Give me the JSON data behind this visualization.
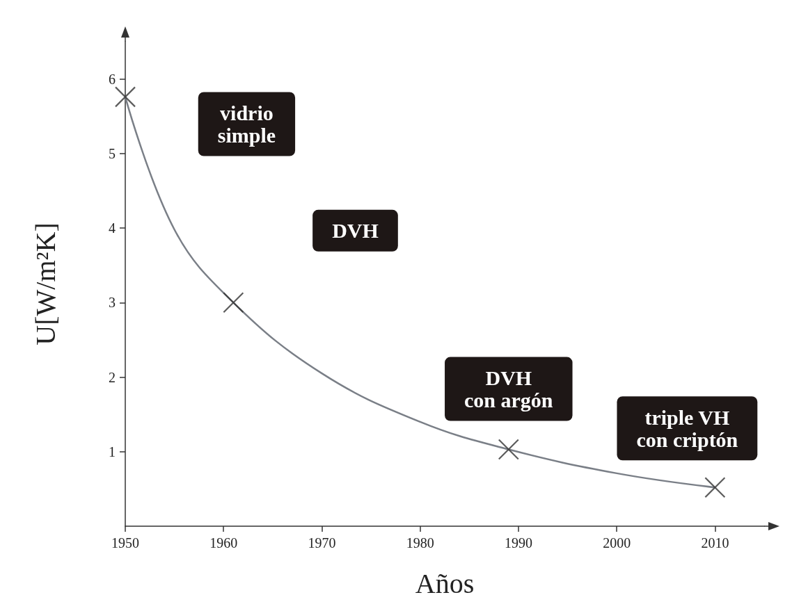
{
  "chart_data": {
    "type": "scatter",
    "xlabel": "Años",
    "ylabel": "U[W/m²K]",
    "xlim": [
      1950,
      2015
    ],
    "xticks": [
      1950,
      1960,
      1970,
      1980,
      1990,
      2000,
      2010
    ],
    "ylim": [
      0,
      6.5
    ],
    "yticks": [
      1,
      2,
      3,
      4,
      5,
      6
    ],
    "grid": false,
    "series": [
      {
        "type": "line",
        "color": "#7a7f87",
        "line_style": "solid",
        "x": [
          1950,
          1955,
          1961,
          1970,
          1980,
          1989,
          2000,
          2010
        ],
        "values": [
          5.76,
          3.98,
          3.0,
          2.05,
          1.4,
          1.03,
          0.71,
          0.52
        ]
      },
      {
        "color": "#333333",
        "marker": "cross",
        "x": [
          1950,
          1961,
          1989,
          2010
        ],
        "values": [
          5.76,
          3.0,
          1.03,
          0.52
        ]
      }
    ],
    "annotations": [
      "vidrio\nsimple",
      "DVH",
      {
        "text": "DVH\ncon argón",
        "x": 1989,
        "y": 1.03
      },
      {
        "text": "triple VH\ncon criptón",
        "x": 2010,
        "y": 0.52
      }
    ]
  }
}
